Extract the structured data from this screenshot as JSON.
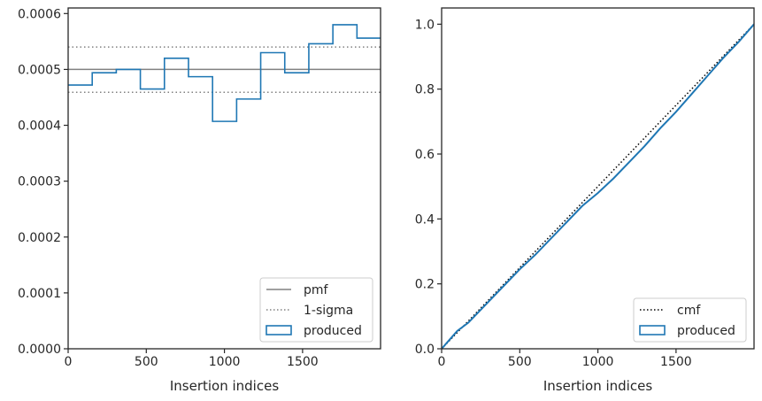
{
  "chart_data": [
    {
      "type": "line",
      "xlabel": "Insertion indices",
      "ylabel": "",
      "xlim": [
        0,
        1999
      ],
      "ylim": [
        0,
        0.00061
      ],
      "xticks": [
        0,
        500,
        1000,
        1500
      ],
      "xtick_labels": [
        "0",
        "500",
        "1000",
        "1500"
      ],
      "yticks": [
        0,
        0.0001,
        0.0002,
        0.0003,
        0.0004,
        0.0005,
        0.0006
      ],
      "ytick_labels": [
        "0.0000",
        "0.0001",
        "0.0002",
        "0.0003",
        "0.0004",
        "0.0005",
        "0.0006"
      ],
      "legend_position": "lower right",
      "legend": [
        {
          "label": "pmf",
          "style": "solid",
          "color": "#808080"
        },
        {
          "label": "1-sigma",
          "style": "dotted",
          "color": "#808080"
        },
        {
          "label": "produced",
          "style": "step-box",
          "color": "#1f77b4"
        }
      ],
      "series": [
        {
          "name": "pmf",
          "kind": "hline",
          "y": 0.0005
        },
        {
          "name": "1-sigma",
          "kind": "hline",
          "y": [
            0.000459,
            0.00054
          ]
        },
        {
          "name": "produced",
          "kind": "histogram-step",
          "bin_edges": [
            0,
            154,
            308,
            462,
            616,
            770,
            924,
            1078,
            1232,
            1386,
            1540,
            1694,
            1848,
            1999
          ],
          "values": [
            0.000472,
            0.000494,
            0.0005,
            0.000465,
            0.00052,
            0.000487,
            0.000407,
            0.000447,
            0.00053,
            0.000494,
            0.000546,
            0.00058,
            0.000556
          ]
        }
      ]
    },
    {
      "type": "line",
      "xlabel": "Insertion indices",
      "ylabel": "",
      "xlim": [
        0,
        1999
      ],
      "ylim": [
        0,
        1.05
      ],
      "xticks": [
        0,
        500,
        1000,
        1500
      ],
      "xtick_labels": [
        "0",
        "500",
        "1000",
        "1500"
      ],
      "yticks": [
        0,
        0.2,
        0.4,
        0.6,
        0.8,
        1.0
      ],
      "ytick_labels": [
        "0.0",
        "0.2",
        "0.4",
        "0.6",
        "0.8",
        "1.0"
      ],
      "legend_position": "lower right",
      "legend": [
        {
          "label": "cmf",
          "style": "dotted",
          "color": "#000000"
        },
        {
          "label": "produced",
          "style": "step-box",
          "color": "#1f77b4"
        }
      ],
      "series": [
        {
          "name": "cmf",
          "kind": "line",
          "x": [
            0,
            1999
          ],
          "y": [
            0,
            1.0
          ]
        },
        {
          "name": "produced",
          "kind": "line",
          "x": [
            0,
            100,
            170,
            200,
            300,
            400,
            500,
            600,
            700,
            800,
            900,
            1000,
            1100,
            1200,
            1300,
            1400,
            1500,
            1600,
            1700,
            1800,
            1900,
            1999
          ],
          "y": [
            0,
            0.055,
            0.08,
            0.095,
            0.145,
            0.195,
            0.245,
            0.29,
            0.34,
            0.39,
            0.44,
            0.48,
            0.525,
            0.575,
            0.625,
            0.68,
            0.73,
            0.785,
            0.84,
            0.895,
            0.945,
            1.0
          ]
        }
      ]
    }
  ]
}
